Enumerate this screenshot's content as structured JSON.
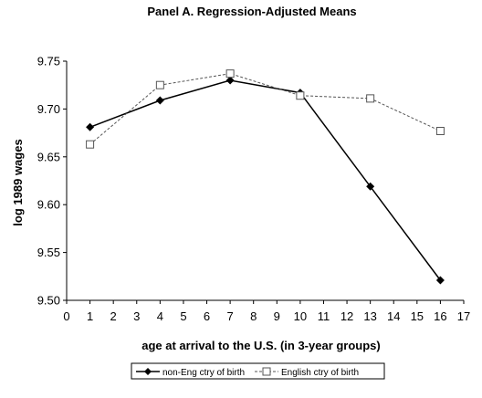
{
  "chart_data": {
    "type": "line",
    "title": "Panel A.  Regression-Adjusted Means",
    "xlabel": "age at arrival to the U.S. (in 3-year groups)",
    "ylabel": "log 1989 wages",
    "xlim": [
      0,
      17
    ],
    "ylim": [
      9.5,
      9.75
    ],
    "x_ticks": [
      "0",
      "1",
      "2",
      "3",
      "4",
      "5",
      "6",
      "7",
      "8",
      "9",
      "10",
      "11",
      "12",
      "13",
      "14",
      "15",
      "16",
      "17"
    ],
    "y_ticks": [
      "9.50",
      "9.55",
      "9.60",
      "9.65",
      "9.70",
      "9.75"
    ],
    "grid": false,
    "legend_position": "bottom",
    "series": [
      {
        "name": "non-Eng ctry of birth",
        "marker": "diamond",
        "line_style": "solid",
        "color": "#000000",
        "x": [
          1,
          4,
          7,
          10,
          13,
          16
        ],
        "y": [
          9.681,
          9.709,
          9.73,
          9.717,
          9.619,
          9.521
        ]
      },
      {
        "name": "English ctry of birth",
        "marker": "square-open",
        "line_style": "dashed",
        "color": "#555555",
        "x": [
          1,
          4,
          7,
          10,
          13,
          16
        ],
        "y": [
          9.663,
          9.725,
          9.737,
          9.714,
          9.711,
          9.677
        ]
      }
    ]
  }
}
